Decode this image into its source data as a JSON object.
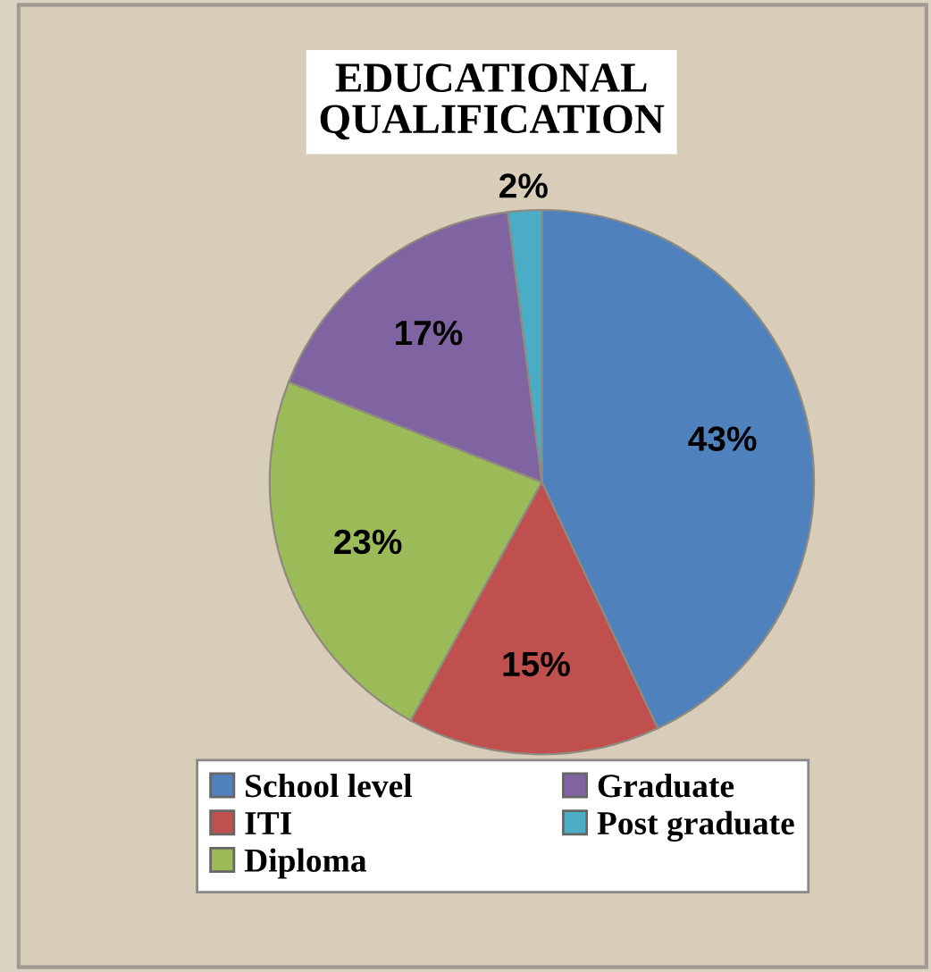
{
  "chart_data": {
    "type": "pie",
    "title": "EDUCATIONAL QUALIFICATION",
    "categories": [
      "School level",
      "ITI",
      "Diploma",
      "Graduate",
      "Post graduate"
    ],
    "values": [
      43,
      15,
      23,
      17,
      2
    ],
    "colors": [
      "#4f81bd",
      "#c0504d",
      "#9bbb59",
      "#8064a2",
      "#4bacc6"
    ],
    "value_labels": [
      "43%",
      "15%",
      "23%",
      "17%",
      "2%"
    ],
    "legend": "bottom"
  }
}
